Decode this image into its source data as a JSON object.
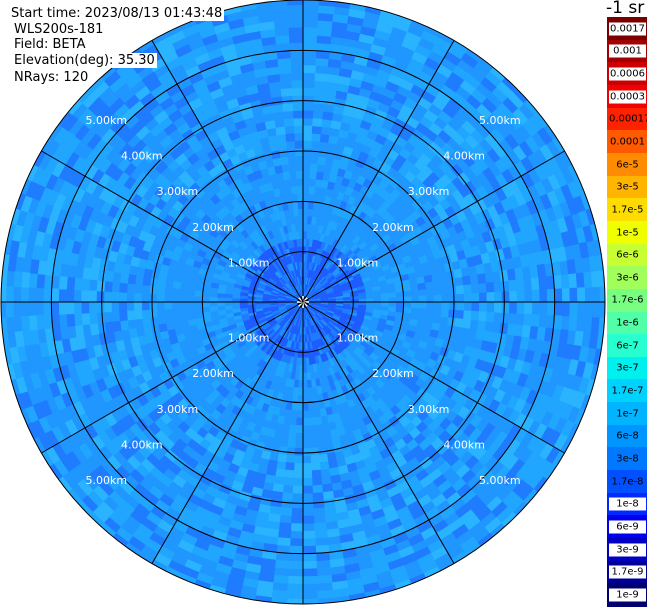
{
  "header": {
    "start_time": "Start time: 2023/08/13 01:43:48",
    "instrument": "WLS200s-181",
    "field": "Field: BETA",
    "elevation_label": "Elevation(deg):",
    "elevation_value": "35.30",
    "nrays": "NRays: 120"
  },
  "units_label": "-1 sr",
  "colorbar": [
    {
      "label": "0.0017",
      "color": "#7a0000"
    },
    {
      "label": "0.001",
      "color": "#a30000"
    },
    {
      "label": "0.0006",
      "color": "#cc0000"
    },
    {
      "label": "0.0003",
      "color": "#f00000"
    },
    {
      "label": "0.00017",
      "color": "#ff2200"
    },
    {
      "label": "0.0001",
      "color": "#ff5a00"
    },
    {
      "label": "6e-5",
      "color": "#ff8c00"
    },
    {
      "label": "3e-5",
      "color": "#ffb400"
    },
    {
      "label": "1.7e-5",
      "color": "#ffdc00"
    },
    {
      "label": "1e-5",
      "color": "#f0ff00"
    },
    {
      "label": "6e-6",
      "color": "#c8ff32"
    },
    {
      "label": "3e-6",
      "color": "#a0ff5a"
    },
    {
      "label": "1.7e-6",
      "color": "#78ff82"
    },
    {
      "label": "1e-6",
      "color": "#50ffa8"
    },
    {
      "label": "6e-7",
      "color": "#28ffd0"
    },
    {
      "label": "3e-7",
      "color": "#00f0f0"
    },
    {
      "label": "1.7e-7",
      "color": "#00d2ff"
    },
    {
      "label": "1e-7",
      "color": "#00b4ff"
    },
    {
      "label": "6e-8",
      "color": "#0096ff"
    },
    {
      "label": "3e-8",
      "color": "#0078ff"
    },
    {
      "label": "1.7e-8",
      "color": "#0050ff"
    },
    {
      "label": "1e-8",
      "color": "#0028ff"
    },
    {
      "label": "6e-9",
      "color": "#0000f0"
    },
    {
      "label": "3e-9",
      "color": "#0000c0"
    },
    {
      "label": "1.7e-9",
      "color": "#000096"
    },
    {
      "label": "1e-9",
      "color": "#00006e"
    }
  ],
  "chart_data": {
    "type": "heatmap",
    "projection": "polar PPI",
    "field": "BETA",
    "elevation_deg": 35.3,
    "nrays": 120,
    "max_range_km": 6.0,
    "range_rings_km": [
      1.0,
      2.0,
      3.0,
      4.0,
      5.0,
      6.0
    ],
    "ring_labels": [
      "1.00km",
      "2.00km",
      "3.00km",
      "4.00km",
      "5.00km"
    ],
    "spoke_angles_deg": [
      0,
      30,
      60,
      90,
      120,
      150,
      180,
      210,
      240,
      270,
      300,
      330
    ],
    "value_range": [
      "1e-9",
      "0.0017"
    ],
    "dominant_values": {
      "0-1.2km": "1e-8 to 3e-8",
      "1.2-3km": "6e-8 to 1e-7",
      "3-6km": "3e-8 to 1e-7"
    },
    "grid": true
  }
}
